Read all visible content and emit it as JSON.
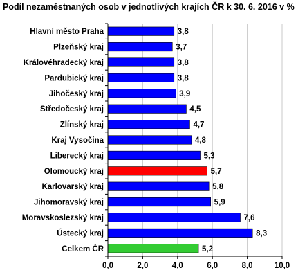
{
  "chart_data": {
    "type": "bar",
    "orientation": "horizontal",
    "title": "Podíl nezaměstnaných osob v jednotlivých krajích ČR k 30. 6. 2016 v %",
    "categories": [
      "Hlavní město Praha",
      "Plzeňský kraj",
      "Královéhradecký kraj",
      "Pardubický kraj",
      "Jihočeský kraj",
      "Středočeský kraj",
      "Zlínský kraj",
      "Kraj Vysočina",
      "Liberecký kraj",
      "Olomoucký kraj",
      "Karlovarský kraj",
      "Jihomoravský kraj",
      "Moravskoslezský kraj",
      "Ústecký kraj",
      "Celkem ČR"
    ],
    "values": [
      3.8,
      3.7,
      3.8,
      3.8,
      3.9,
      4.5,
      4.7,
      4.8,
      5.3,
      5.7,
      5.8,
      5.9,
      7.6,
      8.3,
      5.2
    ],
    "value_labels": [
      "3,8",
      "3,7",
      "3,8",
      "3,8",
      "3,9",
      "4,5",
      "4,7",
      "4,8",
      "5,3",
      "5,7",
      "5,8",
      "5,9",
      "7,6",
      "8,3",
      "5,2"
    ],
    "bar_colors": [
      "#0000ff",
      "#0000ff",
      "#0000ff",
      "#0000ff",
      "#0000ff",
      "#0000ff",
      "#0000ff",
      "#0000ff",
      "#0000ff",
      "#ff0000",
      "#0000ff",
      "#0000ff",
      "#0000ff",
      "#0000ff",
      "#33cc33"
    ],
    "xlim": [
      0,
      10
    ],
    "x_ticks": [
      0,
      2,
      4,
      6,
      8,
      10
    ],
    "x_tick_labels": [
      "0,0",
      "2,0",
      "4,0",
      "6,0",
      "8,0",
      "10,0"
    ],
    "grid": "vertical",
    "legend": "none",
    "xlabel": "",
    "ylabel": ""
  }
}
